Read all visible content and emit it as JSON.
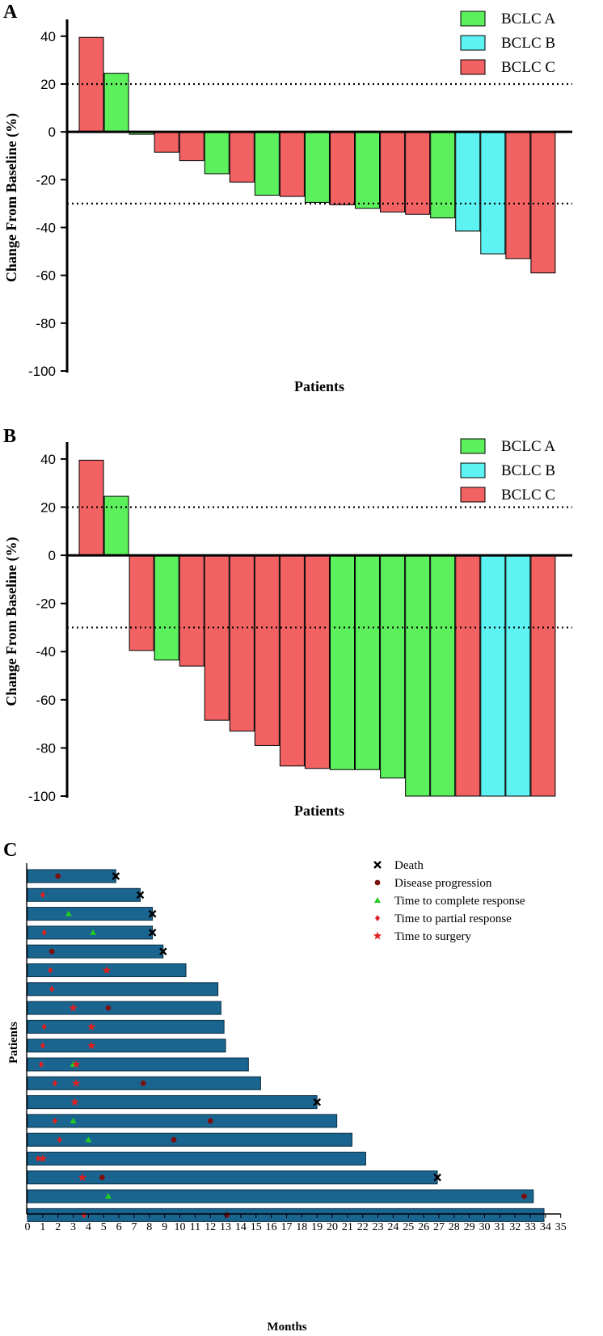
{
  "colors": {
    "BCLC A": "#5cf05c",
    "BCLC B": "#5ef3f3",
    "BCLC C": "#f36262",
    "swimlane_bar": "#1a6590",
    "death": "#000000",
    "progression": "#7a1010",
    "complete_response": "#22cc22",
    "partial_response": "#e02020",
    "surgery": "#e02020"
  },
  "chart_data": [
    {
      "panel": "A",
      "type": "bar",
      "title": "",
      "ylabel": "Change From Baseline (%)",
      "xlabel": "Patients",
      "ylim": [
        -100,
        45
      ],
      "yticks": [
        40,
        20,
        0,
        -20,
        -40,
        -60,
        -80,
        -100
      ],
      "reference_lines": [
        20,
        -30
      ],
      "legend": [
        "BCLC A",
        "BCLC B",
        "BCLC C"
      ],
      "legend_position": "top-right",
      "bars": [
        {
          "value": 39.5,
          "group": "BCLC C"
        },
        {
          "value": 24.5,
          "group": "BCLC A"
        },
        {
          "value": -1,
          "group": "BCLC A"
        },
        {
          "value": -8.5,
          "group": "BCLC C"
        },
        {
          "value": -12,
          "group": "BCLC C"
        },
        {
          "value": -17.5,
          "group": "BCLC A"
        },
        {
          "value": -21,
          "group": "BCLC C"
        },
        {
          "value": -26.5,
          "group": "BCLC A"
        },
        {
          "value": -27,
          "group": "BCLC C"
        },
        {
          "value": -29.5,
          "group": "BCLC A"
        },
        {
          "value": -30.5,
          "group": "BCLC C"
        },
        {
          "value": -32,
          "group": "BCLC A"
        },
        {
          "value": -33.5,
          "group": "BCLC C"
        },
        {
          "value": -34.5,
          "group": "BCLC C"
        },
        {
          "value": -36,
          "group": "BCLC A"
        },
        {
          "value": -41.5,
          "group": "BCLC B"
        },
        {
          "value": -51,
          "group": "BCLC B"
        },
        {
          "value": -53,
          "group": "BCLC C"
        },
        {
          "value": -59,
          "group": "BCLC C"
        }
      ]
    },
    {
      "panel": "B",
      "type": "bar",
      "title": "",
      "ylabel": "Change From Baseline (%)",
      "xlabel": "Patients",
      "ylim": [
        -100,
        45
      ],
      "yticks": [
        40,
        20,
        0,
        -20,
        -40,
        -60,
        -80,
        -100
      ],
      "reference_lines": [
        20,
        -30
      ],
      "legend": [
        "BCLC A",
        "BCLC B",
        "BCLC C"
      ],
      "legend_position": "top-right",
      "bars": [
        {
          "value": 39.5,
          "group": "BCLC C"
        },
        {
          "value": 24.5,
          "group": "BCLC A"
        },
        {
          "value": -39.5,
          "group": "BCLC C"
        },
        {
          "value": -43.5,
          "group": "BCLC A"
        },
        {
          "value": -46,
          "group": "BCLC C"
        },
        {
          "value": -68.5,
          "group": "BCLC C"
        },
        {
          "value": -73,
          "group": "BCLC C"
        },
        {
          "value": -79,
          "group": "BCLC C"
        },
        {
          "value": -87.5,
          "group": "BCLC C"
        },
        {
          "value": -88.5,
          "group": "BCLC C"
        },
        {
          "value": -89,
          "group": "BCLC A"
        },
        {
          "value": -89,
          "group": "BCLC A"
        },
        {
          "value": -92.5,
          "group": "BCLC A"
        },
        {
          "value": -100,
          "group": "BCLC A"
        },
        {
          "value": -100,
          "group": "BCLC A"
        },
        {
          "value": -100,
          "group": "BCLC C"
        },
        {
          "value": -100,
          "group": "BCLC B"
        },
        {
          "value": -100,
          "group": "BCLC B"
        },
        {
          "value": -100,
          "group": "BCLC C"
        }
      ]
    },
    {
      "panel": "C",
      "type": "swimmer",
      "title": "",
      "ylabel": "Patients",
      "xlabel": "Months",
      "xlim": [
        0,
        35
      ],
      "xticks": [
        "0",
        "1",
        "2",
        "3",
        "4",
        "5",
        "6",
        "7",
        "8",
        "9",
        "10",
        "11",
        "12",
        "13",
        "14",
        "15",
        "16",
        "17",
        "18",
        "19",
        "20",
        "21",
        "22",
        "23",
        "24",
        "25",
        "26",
        "27",
        "28",
        "29",
        "30",
        "31",
        "32",
        "33",
        "34",
        "35"
      ],
      "legend_position": "top-right",
      "legend": [
        {
          "key": "death",
          "label": "Death"
        },
        {
          "key": "progression",
          "label": "Disease progression"
        },
        {
          "key": "complete_response",
          "label": "Time to complete response"
        },
        {
          "key": "partial_response",
          "label": "Time to partial response"
        },
        {
          "key": "surgery",
          "label": "Time to surgery"
        }
      ],
      "patients": [
        {
          "months": 5.8,
          "events": [
            {
              "t": 2.0,
              "type": "progression"
            },
            {
              "t": 5.8,
              "type": "death"
            }
          ]
        },
        {
          "months": 7.4,
          "events": [
            {
              "t": 1.0,
              "type": "partial_response"
            },
            {
              "t": 7.4,
              "type": "death"
            }
          ]
        },
        {
          "months": 8.2,
          "events": [
            {
              "t": 2.7,
              "type": "complete_response"
            },
            {
              "t": 8.2,
              "type": "death"
            }
          ]
        },
        {
          "months": 8.2,
          "events": [
            {
              "t": 1.1,
              "type": "partial_response"
            },
            {
              "t": 4.3,
              "type": "complete_response"
            },
            {
              "t": 8.2,
              "type": "death"
            }
          ]
        },
        {
          "months": 8.9,
          "events": [
            {
              "t": 1.6,
              "type": "progression"
            },
            {
              "t": 8.9,
              "type": "death"
            }
          ]
        },
        {
          "months": 10.4,
          "events": [
            {
              "t": 1.5,
              "type": "partial_response"
            },
            {
              "t": 5.2,
              "type": "surgery"
            }
          ]
        },
        {
          "months": 12.5,
          "events": [
            {
              "t": 1.6,
              "type": "partial_response"
            }
          ]
        },
        {
          "months": 12.7,
          "events": [
            {
              "t": 3.0,
              "type": "surgery"
            },
            {
              "t": 5.3,
              "type": "progression"
            }
          ]
        },
        {
          "months": 12.9,
          "events": [
            {
              "t": 1.1,
              "type": "partial_response"
            },
            {
              "t": 4.2,
              "type": "surgery"
            }
          ]
        },
        {
          "months": 13.0,
          "events": [
            {
              "t": 1.0,
              "type": "partial_response"
            },
            {
              "t": 4.2,
              "type": "surgery"
            }
          ]
        },
        {
          "months": 14.5,
          "events": [
            {
              "t": 0.9,
              "type": "partial_response"
            },
            {
              "t": 3.0,
              "type": "complete_response"
            },
            {
              "t": 3.2,
              "type": "surgery"
            }
          ]
        },
        {
          "months": 15.3,
          "events": [
            {
              "t": 1.8,
              "type": "partial_response"
            },
            {
              "t": 3.2,
              "type": "surgery"
            },
            {
              "t": 7.6,
              "type": "progression"
            }
          ]
        },
        {
          "months": 19.0,
          "events": [
            {
              "t": 3.1,
              "type": "surgery"
            },
            {
              "t": 19.0,
              "type": "death"
            }
          ]
        },
        {
          "months": 20.3,
          "events": [
            {
              "t": 1.8,
              "type": "partial_response"
            },
            {
              "t": 3.0,
              "type": "complete_response"
            },
            {
              "t": 12.0,
              "type": "progression"
            }
          ]
        },
        {
          "months": 21.3,
          "events": [
            {
              "t": 2.1,
              "type": "partial_response"
            },
            {
              "t": 4.0,
              "type": "complete_response"
            },
            {
              "t": 9.6,
              "type": "progression"
            }
          ]
        },
        {
          "months": 22.2,
          "events": [
            {
              "t": 0.7,
              "type": "partial_response"
            },
            {
              "t": 1.0,
              "type": "surgery"
            }
          ]
        },
        {
          "months": 26.9,
          "events": [
            {
              "t": 3.6,
              "type": "surgery"
            },
            {
              "t": 4.9,
              "type": "progression"
            },
            {
              "t": 26.9,
              "type": "death"
            }
          ]
        },
        {
          "months": 33.2,
          "events": [
            {
              "t": 5.3,
              "type": "complete_response"
            },
            {
              "t": 32.6,
              "type": "progression"
            }
          ]
        },
        {
          "months": 33.9,
          "events": [
            {
              "t": 3.7,
              "type": "partial_response"
            },
            {
              "t": 13.1,
              "type": "progression"
            }
          ]
        }
      ]
    }
  ]
}
